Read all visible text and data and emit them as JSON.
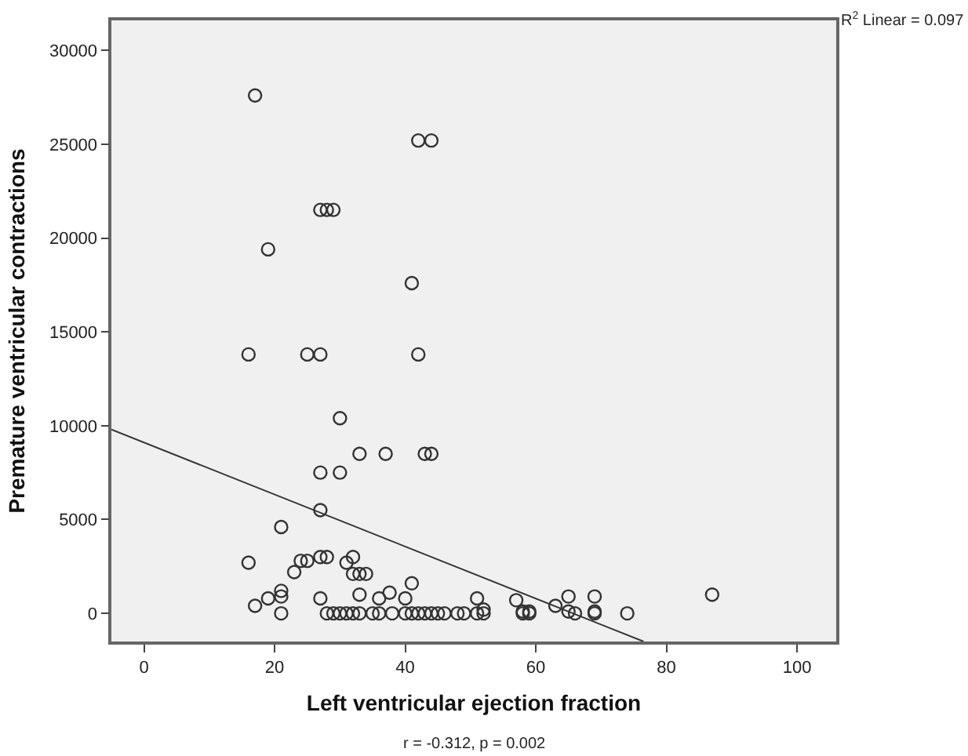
{
  "chart_data": {
    "type": "scatter",
    "xlabel": "Left ventricular ejection fraction",
    "ylabel": "Premature ventricular contractions",
    "annotations": [
      "R$^{2}$ Linear = 0.097",
      "r = -0.312, p = 0.002"
    ],
    "xlim": [
      -5,
      106
    ],
    "ylim": [
      -1500,
      31600
    ],
    "xticks": [
      0,
      20,
      40,
      60,
      80,
      100
    ],
    "yticks": [
      0,
      5000,
      10000,
      15000,
      20000,
      25000,
      30000
    ],
    "grid": false,
    "marker": "circle",
    "series": [
      {
        "color": "#333333",
        "x": [
          17,
          42,
          44,
          27,
          28,
          29,
          19,
          41,
          16,
          25,
          27,
          42,
          30,
          33,
          37,
          43,
          44,
          27,
          30,
          27,
          21,
          16,
          24,
          25,
          27,
          28,
          31,
          32,
          23,
          32,
          33,
          34,
          41,
          21,
          21,
          19,
          37.6,
          33,
          27,
          36,
          40,
          51,
          57,
          17,
          63,
          65,
          69,
          87,
          52,
          58,
          59,
          65,
          69,
          74,
          21,
          28,
          29,
          30,
          31,
          32,
          33,
          35,
          36,
          38,
          40,
          41,
          42,
          43,
          44,
          45,
          46,
          48,
          49,
          51,
          52,
          58,
          59,
          66,
          69
        ],
        "values": [
          27600,
          25200,
          25200,
          21500,
          21500,
          21500,
          19400,
          17600,
          13800,
          13800,
          13800,
          13800,
          10400,
          8500,
          8500,
          8500,
          8500,
          7500,
          7500,
          5500,
          4600,
          2700,
          2800,
          2800,
          3000,
          3000,
          2700,
          3000,
          2200,
          2100,
          2100,
          2100,
          1600,
          1200,
          900,
          800,
          1100,
          1000,
          800,
          800,
          800,
          800,
          700,
          400,
          400,
          900,
          900,
          1000,
          200,
          100,
          100,
          100,
          100,
          0,
          0,
          0,
          0,
          0,
          0,
          0,
          0,
          0,
          0,
          0,
          0,
          0,
          0,
          0,
          0,
          0,
          0,
          0,
          0,
          0,
          0,
          0,
          0,
          0,
          0
        ]
      },
      {
        "type": "line",
        "marker": "none",
        "color": "#333333",
        "x": [
          -5,
          76.5
        ],
        "values": [
          9800,
          -1500
        ]
      }
    ]
  }
}
